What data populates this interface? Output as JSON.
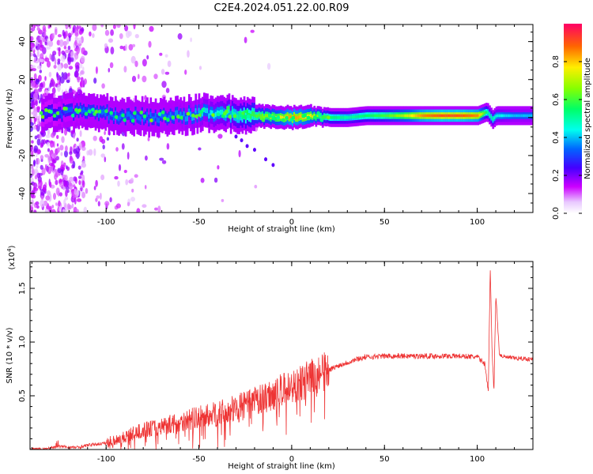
{
  "title": "C2E4.2024.051.22.00.R09",
  "chart_data": [
    {
      "type": "heatmap",
      "xlabel": "Height of straight line (km)",
      "ylabel": "Frequency (Hz)",
      "xlim": [
        -141,
        130
      ],
      "ylim": [
        -50,
        49
      ],
      "xticks": [
        -100,
        -50,
        0,
        50,
        100
      ],
      "yticks": [
        -40,
        -20,
        0,
        20,
        40
      ],
      "colorbar": {
        "label": "Normalized spectral amplitude",
        "range": [
          0,
          1
        ],
        "ticks": [
          "0.0",
          "0.2",
          "0.4",
          "0.6",
          "0.8"
        ],
        "colors": [
          "#ffffff",
          "#cc00ff",
          "#4400ff",
          "#0066ff",
          "#00ffee",
          "#00ff66",
          "#88ff00",
          "#ffee00",
          "#ff6600",
          "#ff0066"
        ]
      },
      "ridge": {
        "x": [
          -130,
          -110,
          -90,
          -70,
          -50,
          -40,
          -30,
          -20,
          -10,
          0,
          10,
          20,
          30,
          40,
          50,
          60,
          70,
          80,
          90,
          100,
          105,
          108,
          110,
          120,
          130
        ],
        "freq": [
          2,
          3,
          1,
          0,
          2,
          3,
          2,
          1,
          0,
          0,
          1,
          0,
          0,
          1,
          1,
          1,
          1,
          1,
          1,
          1,
          3,
          -1,
          1,
          1,
          1
        ],
        "amplitude": [
          0.3,
          0.35,
          0.35,
          0.35,
          0.4,
          0.45,
          0.5,
          0.6,
          0.7,
          0.85,
          0.75,
          0.55,
          0.5,
          0.55,
          0.6,
          0.7,
          0.85,
          0.9,
          0.9,
          0.85,
          0.5,
          0.5,
          0.45,
          0.4,
          0.4
        ]
      }
    },
    {
      "type": "line",
      "xlabel": "Height of straight line (km)",
      "ylabel": "SNR (10 * v/v)",
      "multiplier": "(x10",
      "multiplier_exp": "4",
      "multiplier_close": ")",
      "xlim": [
        -141,
        130
      ],
      "ylim": [
        0,
        1.75
      ],
      "xticks": [
        -100,
        -50,
        0,
        50,
        100
      ],
      "yticks": [
        0.5,
        1.0,
        1.5
      ],
      "ytick_labels": [
        "0.5",
        "1.0",
        "1.5"
      ],
      "color": "#ee3333",
      "series": [
        {
          "x": [
            -141,
            -130,
            -125,
            -120,
            -115,
            -110,
            -100,
            -90,
            -80,
            -70,
            -60,
            -50,
            -40,
            -30,
            -20,
            -10,
            0,
            5,
            10,
            15,
            20,
            25,
            30,
            35,
            40,
            50,
            60,
            70,
            80,
            90,
            100,
            104,
            106,
            107,
            108,
            109,
            110,
            112,
            115,
            120,
            130
          ],
          "y": [
            0.0,
            0.01,
            0.03,
            0.02,
            0.02,
            0.04,
            0.06,
            0.12,
            0.18,
            0.22,
            0.26,
            0.3,
            0.33,
            0.38,
            0.44,
            0.52,
            0.58,
            0.62,
            0.66,
            0.7,
            0.74,
            0.78,
            0.81,
            0.84,
            0.86,
            0.87,
            0.87,
            0.87,
            0.87,
            0.87,
            0.86,
            0.8,
            0.55,
            1.7,
            0.9,
            0.55,
            1.45,
            0.88,
            0.86,
            0.85,
            0.84
          ]
        }
      ]
    }
  ]
}
